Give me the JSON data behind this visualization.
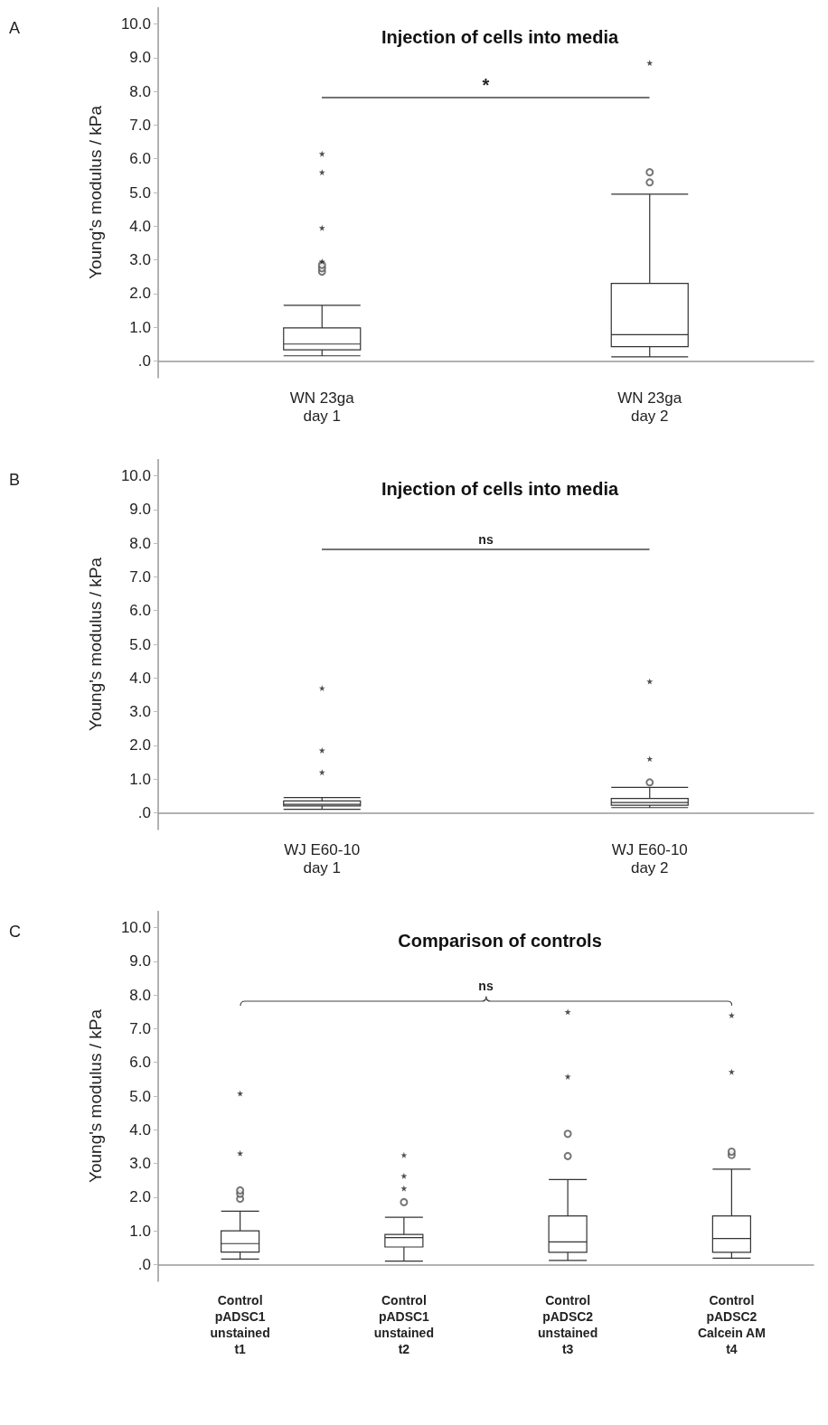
{
  "chart_data": [
    {
      "type": "box",
      "title": "Injection of cells into media",
      "ylabel": "Young's modulus / kPa",
      "categories": [
        "WN 23ga\nday 1",
        "WN 23ga\nday 2"
      ],
      "boxes": [
        {
          "low": 0.15,
          "q1": 0.33,
          "median": 0.5,
          "q3": 0.98,
          "high": 1.65,
          "outliers": [
            2.65,
            2.75,
            2.85
          ]
        },
        {
          "low": 0.12,
          "q1": 0.42,
          "median": 0.78,
          "q3": 2.3,
          "high": 4.95,
          "outliers": [
            5.3,
            5.6
          ]
        }
      ],
      "series": [
        {
          "type": "scatter",
          "marker": "star",
          "x": [
            "WN 23ga\nday 1",
            "WN 23ga\nday 1",
            "WN 23ga\nday 1",
            "WN 23ga\nday 1",
            "WN 23ga\nday 2"
          ],
          "values": [
            2.95,
            3.95,
            5.6,
            6.15,
            8.85
          ]
        }
      ],
      "ylim": [
        -0.5,
        10.5
      ],
      "yticks": [
        {
          "value": 0,
          "label": ".0"
        },
        {
          "value": 1,
          "label": "1.0"
        },
        {
          "value": 2,
          "label": "2.0"
        },
        {
          "value": 3,
          "label": "3.0"
        },
        {
          "value": 4,
          "label": "4.0"
        },
        {
          "value": 5,
          "label": "5.0"
        },
        {
          "value": 6,
          "label": "6.0"
        },
        {
          "value": 7,
          "label": "7.0"
        },
        {
          "value": 8,
          "label": "8.0"
        },
        {
          "value": 9,
          "label": "9.0"
        },
        {
          "value": 10,
          "label": "10.0"
        }
      ],
      "annotations": [
        "A",
        "*"
      ]
    },
    {
      "type": "box",
      "title": "Injection of cells into media",
      "ylabel": "Young's modulus / kPa",
      "categories": [
        "WJ E60-10\nday 1",
        "WJ E60-10\nday 2"
      ],
      "boxes": [
        {
          "low": 0.1,
          "q1": 0.2,
          "median": 0.25,
          "q3": 0.35,
          "high": 0.45
        },
        {
          "low": 0.15,
          "q1": 0.22,
          "median": 0.3,
          "q3": 0.42,
          "high": 0.75,
          "outliers": [
            0.9
          ]
        }
      ],
      "series": [
        {
          "type": "scatter",
          "marker": "star",
          "x": [
            "WJ E60-10\nday 1",
            "WJ E60-10\nday 1",
            "WJ E60-10\nday 1",
            "WJ E60-10\nday 2",
            "WJ E60-10\nday 2"
          ],
          "values": [
            1.2,
            1.85,
            3.7,
            1.6,
            3.9
          ]
        }
      ],
      "ylim": [
        -0.5,
        10.5
      ],
      "yticks": [
        {
          "value": 0,
          "label": ".0"
        },
        {
          "value": 1,
          "label": "1.0"
        },
        {
          "value": 2,
          "label": "2.0"
        },
        {
          "value": 3,
          "label": "3.0"
        },
        {
          "value": 4,
          "label": "4.0"
        },
        {
          "value": 5,
          "label": "5.0"
        },
        {
          "value": 6,
          "label": "6.0"
        },
        {
          "value": 7,
          "label": "7.0"
        },
        {
          "value": 8,
          "label": "8.0"
        },
        {
          "value": 9,
          "label": "9.0"
        },
        {
          "value": 10,
          "label": "10.0"
        }
      ],
      "annotations": [
        "B",
        "ns"
      ]
    },
    {
      "type": "box",
      "title": "Comparison of controls",
      "ylabel": "Young's modulus / kPa",
      "categories": [
        "Control\npADSC1\nunstained\nt1",
        "Control\npADSC1\nunstained\nt2",
        "Control\npADSC2\nunstained\nt3",
        "Control\npADSC2\nCalcein AM\nt4"
      ],
      "boxes": [
        {
          "low": 0.16,
          "q1": 0.37,
          "median": 0.62,
          "q3": 1.0,
          "high": 1.58,
          "outliers": [
            1.95,
            2.1,
            2.2
          ]
        },
        {
          "low": 0.1,
          "q1": 0.52,
          "median": 0.8,
          "q3": 0.89,
          "high": 1.4,
          "outliers": [
            1.85
          ]
        },
        {
          "low": 0.12,
          "q1": 0.36,
          "median": 0.67,
          "q3": 1.44,
          "high": 2.52,
          "outliers": [
            3.22,
            3.88
          ]
        },
        {
          "low": 0.19,
          "q1": 0.36,
          "median": 0.77,
          "q3": 1.44,
          "high": 2.83,
          "outliers": [
            3.25,
            3.35
          ]
        }
      ],
      "series": [
        {
          "type": "scatter",
          "marker": "star",
          "x": [
            "Control\npADSC1\nunstained\nt1",
            "Control\npADSC1\nunstained\nt1",
            "Control\npADSC1\nunstained\nt2",
            "Control\npADSC1\nunstained\nt2",
            "Control\npADSC1\nunstained\nt2",
            "Control\npADSC2\nunstained\nt3",
            "Control\npADSC2\nunstained\nt3",
            "Control\npADSC2\nCalcein AM\nt4",
            "Control\npADSC2\nCalcein AM\nt4"
          ],
          "values": [
            3.3,
            5.08,
            2.26,
            2.63,
            3.25,
            5.58,
            7.5,
            5.72,
            7.4
          ]
        }
      ],
      "ylim": [
        -0.5,
        10.5
      ],
      "yticks": [
        {
          "value": 0,
          "label": ".0"
        },
        {
          "value": 1,
          "label": "1.0"
        },
        {
          "value": 2,
          "label": "2.0"
        },
        {
          "value": 3,
          "label": "3.0"
        },
        {
          "value": 4,
          "label": "4.0"
        },
        {
          "value": 5,
          "label": "5.0"
        },
        {
          "value": 6,
          "label": "6.0"
        },
        {
          "value": 7,
          "label": "7.0"
        },
        {
          "value": 8,
          "label": "8.0"
        },
        {
          "value": 9,
          "label": "9.0"
        },
        {
          "value": 10,
          "label": "10.0"
        }
      ],
      "annotations": [
        "C",
        "ns"
      ]
    }
  ]
}
